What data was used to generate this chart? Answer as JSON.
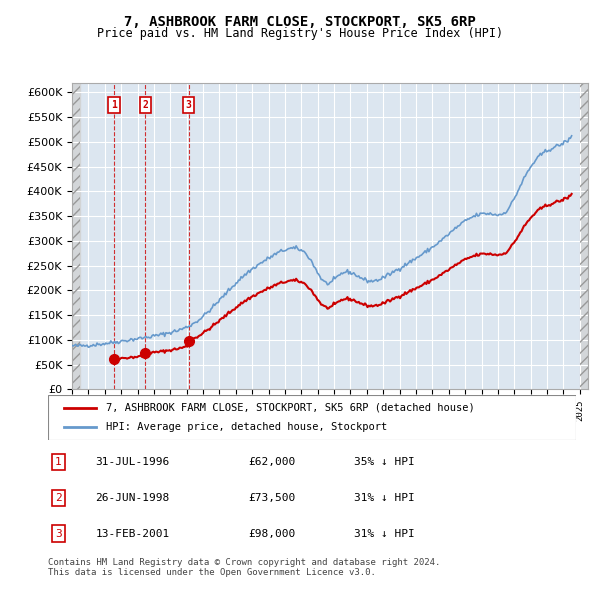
{
  "title": "7, ASHBROOK FARM CLOSE, STOCKPORT, SK5 6RP",
  "subtitle": "Price paid vs. HM Land Registry's House Price Index (HPI)",
  "ylabel_values": [
    "£0",
    "£50K",
    "£100K",
    "£150K",
    "£200K",
    "£250K",
    "£300K",
    "£350K",
    "£400K",
    "£450K",
    "£500K",
    "£550K",
    "£600K"
  ],
  "ylim": [
    0,
    620000
  ],
  "yticks": [
    0,
    50000,
    100000,
    150000,
    200000,
    250000,
    300000,
    350000,
    400000,
    450000,
    500000,
    550000,
    600000
  ],
  "sale_dates": [
    "1996-07-31",
    "1998-06-26",
    "2001-02-13"
  ],
  "sale_prices": [
    62000,
    73500,
    98000
  ],
  "sale_labels": [
    "1",
    "2",
    "3"
  ],
  "hpi_color": "#6699cc",
  "sale_color": "#cc0000",
  "dashed_color": "#cc0000",
  "box_color": "#cc0000",
  "background_hatched_color": "#e8e8e8",
  "plot_bg_color": "#dce6f0",
  "legend_label_sale": "7, ASHBROOK FARM CLOSE, STOCKPORT, SK5 6RP (detached house)",
  "legend_label_hpi": "HPI: Average price, detached house, Stockport",
  "table_rows": [
    [
      "1",
      "31-JUL-1996",
      "£62,000",
      "35% ↓ HPI"
    ],
    [
      "2",
      "26-JUN-1998",
      "£73,500",
      "31% ↓ HPI"
    ],
    [
      "3",
      "13-FEB-2001",
      "£98,000",
      "31% ↓ HPI"
    ]
  ],
  "footer": "Contains HM Land Registry data © Crown copyright and database right 2024.\nThis data is licensed under the Open Government Licence v3.0.",
  "xlim_start": 1994.0,
  "xlim_end": 2025.5
}
